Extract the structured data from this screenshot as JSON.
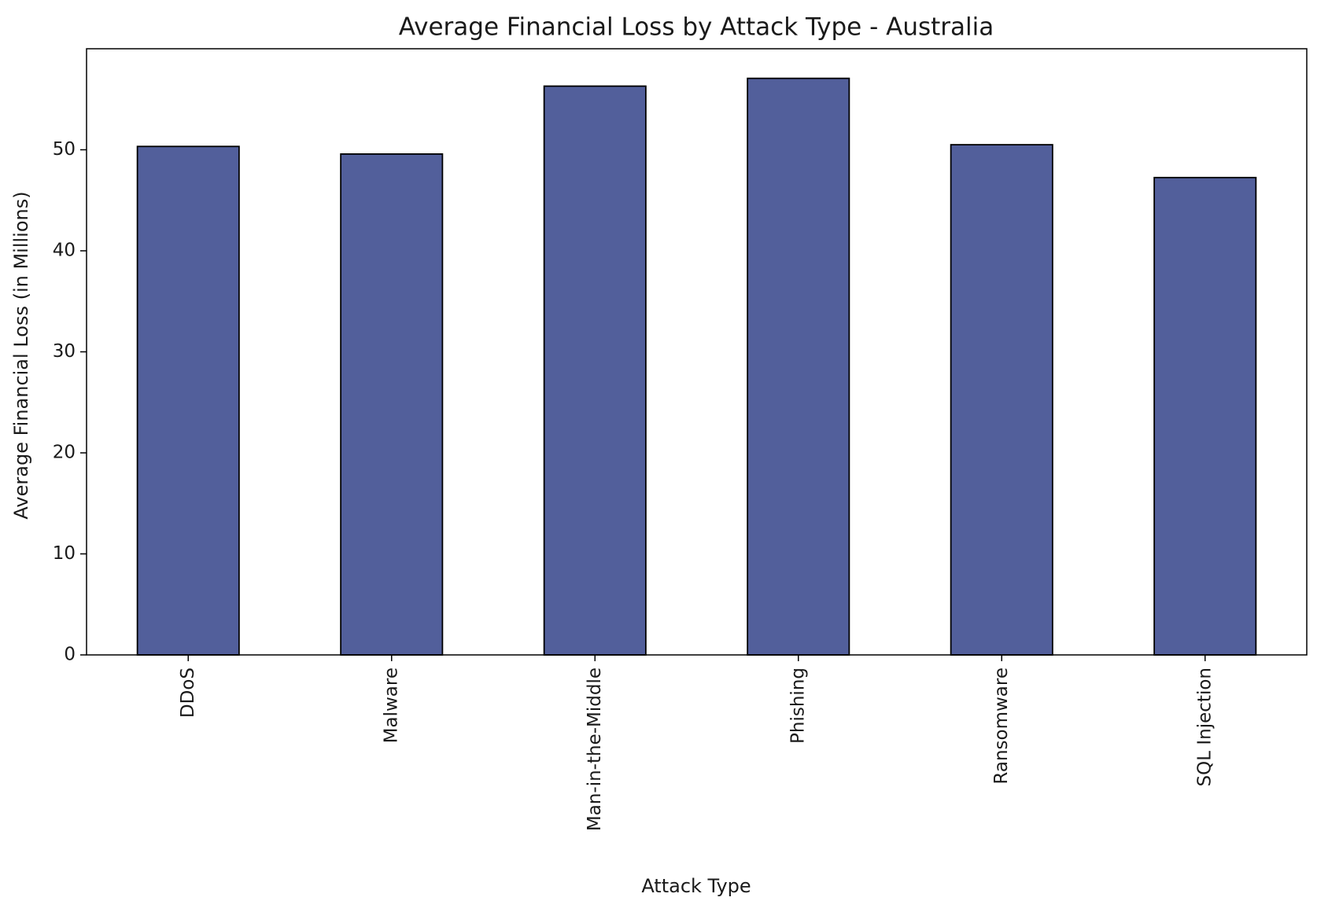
{
  "chart_data": {
    "type": "bar",
    "title": "Average Financial Loss by Attack Type - Australia",
    "xlabel": "Attack Type",
    "ylabel": "Average Financial Loss (in Millions)",
    "categories": [
      "DDoS",
      "Malware",
      "Man-in-the-Middle",
      "Phishing",
      "Ransomware",
      "SQL Injection"
    ],
    "values": [
      50.33,
      49.58,
      56.3,
      57.07,
      50.5,
      47.25
    ],
    "color": "#525f9b",
    "edgecolor": "#000000",
    "ylim": [
      0,
      60
    ],
    "yticks": [
      0,
      10,
      20,
      30,
      40,
      50
    ],
    "grid": false
  }
}
